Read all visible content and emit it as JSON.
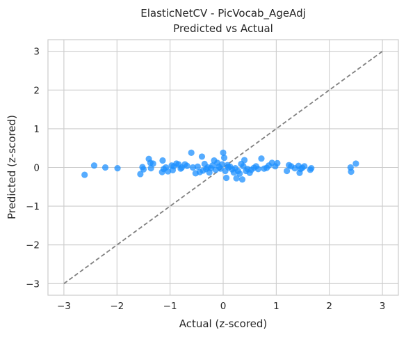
{
  "chart_data": {
    "type": "scatter",
    "title": "ElasticNetCV - PicVocab_AgeAdj",
    "subtitle": "Predicted vs Actual",
    "xlabel": "Actual (z-scored)",
    "ylabel": "Predicted (z-scored)",
    "xlim": [
      -3.3,
      3.3
    ],
    "ylim": [
      -3.3,
      3.3
    ],
    "xticks": [
      -3,
      -2,
      -1,
      0,
      1,
      2,
      3
    ],
    "yticks": [
      -3,
      -2,
      -1,
      0,
      1,
      2,
      3
    ],
    "xtick_labels": [
      "−3",
      "−2",
      "−1",
      "0",
      "1",
      "2",
      "3"
    ],
    "ytick_labels": [
      "−3",
      "−2",
      "−1",
      "0",
      "1",
      "2",
      "3"
    ],
    "grid": true,
    "reference_line": {
      "x": [
        -3,
        3
      ],
      "y": [
        -3,
        3
      ],
      "color": "#808080",
      "style": "dashed"
    },
    "point_color": "#1e90ff",
    "points": [
      {
        "x": -2.61,
        "y": -0.19
      },
      {
        "x": -2.43,
        "y": 0.05
      },
      {
        "x": -2.22,
        "y": 0.0
      },
      {
        "x": -1.99,
        "y": -0.02
      },
      {
        "x": -1.56,
        "y": -0.17
      },
      {
        "x": -1.52,
        "y": 0.01
      },
      {
        "x": -1.5,
        "y": -0.05
      },
      {
        "x": -1.4,
        "y": 0.22
      },
      {
        "x": -1.37,
        "y": 0.12
      },
      {
        "x": -1.36,
        "y": -0.02
      },
      {
        "x": -1.32,
        "y": 0.1
      },
      {
        "x": -1.15,
        "y": -0.12
      },
      {
        "x": -1.14,
        "y": 0.18
      },
      {
        "x": -1.12,
        "y": -0.04
      },
      {
        "x": -1.08,
        "y": 0.0
      },
      {
        "x": -1.04,
        "y": -0.1
      },
      {
        "x": -0.97,
        "y": 0.05
      },
      {
        "x": -0.95,
        "y": -0.07
      },
      {
        "x": -0.93,
        "y": 0.03
      },
      {
        "x": -0.88,
        "y": 0.1
      },
      {
        "x": -0.84,
        "y": 0.08
      },
      {
        "x": -0.8,
        "y": -0.03
      },
      {
        "x": -0.78,
        "y": 0.0
      },
      {
        "x": -0.72,
        "y": 0.08
      },
      {
        "x": -0.68,
        "y": 0.04
      },
      {
        "x": -0.6,
        "y": 0.38
      },
      {
        "x": -0.57,
        "y": 0.0
      },
      {
        "x": -0.52,
        "y": -0.15
      },
      {
        "x": -0.48,
        "y": 0.02
      },
      {
        "x": -0.44,
        "y": -0.12
      },
      {
        "x": -0.4,
        "y": 0.28
      },
      {
        "x": -0.38,
        "y": -0.08
      },
      {
        "x": -0.35,
        "y": 0.09
      },
      {
        "x": -0.32,
        "y": -0.04
      },
      {
        "x": -0.29,
        "y": 0.0
      },
      {
        "x": -0.26,
        "y": -0.13
      },
      {
        "x": -0.23,
        "y": -0.02
      },
      {
        "x": -0.2,
        "y": 0.05
      },
      {
        "x": -0.17,
        "y": 0.18
      },
      {
        "x": -0.14,
        "y": -0.06
      },
      {
        "x": -0.11,
        "y": 0.12
      },
      {
        "x": -0.08,
        "y": 0.02
      },
      {
        "x": -0.05,
        "y": -0.03
      },
      {
        "x": -0.02,
        "y": 0.08
      },
      {
        "x": 0.0,
        "y": 0.38
      },
      {
        "x": 0.02,
        "y": 0.25
      },
      {
        "x": 0.04,
        "y": -0.09
      },
      {
        "x": 0.06,
        "y": -0.27
      },
      {
        "x": 0.08,
        "y": 0.06
      },
      {
        "x": 0.1,
        "y": 0.0
      },
      {
        "x": 0.13,
        "y": 0.02
      },
      {
        "x": 0.17,
        "y": -0.05
      },
      {
        "x": 0.2,
        "y": -0.13
      },
      {
        "x": 0.23,
        "y": -0.02
      },
      {
        "x": 0.25,
        "y": -0.28
      },
      {
        "x": 0.28,
        "y": -0.09
      },
      {
        "x": 0.31,
        "y": -0.16
      },
      {
        "x": 0.34,
        "y": 0.09
      },
      {
        "x": 0.36,
        "y": -0.31
      },
      {
        "x": 0.38,
        "y": 0.03
      },
      {
        "x": 0.4,
        "y": 0.19
      },
      {
        "x": 0.43,
        "y": -0.09
      },
      {
        "x": 0.46,
        "y": -0.04
      },
      {
        "x": 0.5,
        "y": -0.14
      },
      {
        "x": 0.53,
        "y": -0.06
      },
      {
        "x": 0.58,
        "y": -0.01
      },
      {
        "x": 0.62,
        "y": 0.03
      },
      {
        "x": 0.66,
        "y": -0.04
      },
      {
        "x": 0.72,
        "y": 0.23
      },
      {
        "x": 0.77,
        "y": -0.03
      },
      {
        "x": 0.82,
        "y": -0.01
      },
      {
        "x": 0.86,
        "y": 0.05
      },
      {
        "x": 0.92,
        "y": 0.12
      },
      {
        "x": 0.98,
        "y": 0.03
      },
      {
        "x": 1.02,
        "y": 0.11
      },
      {
        "x": 1.2,
        "y": -0.09
      },
      {
        "x": 1.24,
        "y": 0.06
      },
      {
        "x": 1.28,
        "y": 0.03
      },
      {
        "x": 1.35,
        "y": -0.02
      },
      {
        "x": 1.42,
        "y": 0.04
      },
      {
        "x": 1.44,
        "y": -0.14
      },
      {
        "x": 1.46,
        "y": -0.04
      },
      {
        "x": 1.49,
        "y": -0.01
      },
      {
        "x": 1.53,
        "y": 0.03
      },
      {
        "x": 1.64,
        "y": -0.06
      },
      {
        "x": 1.66,
        "y": -0.02
      },
      {
        "x": 2.4,
        "y": 0.0
      },
      {
        "x": 2.41,
        "y": -0.11
      },
      {
        "x": 2.5,
        "y": 0.1
      }
    ]
  }
}
